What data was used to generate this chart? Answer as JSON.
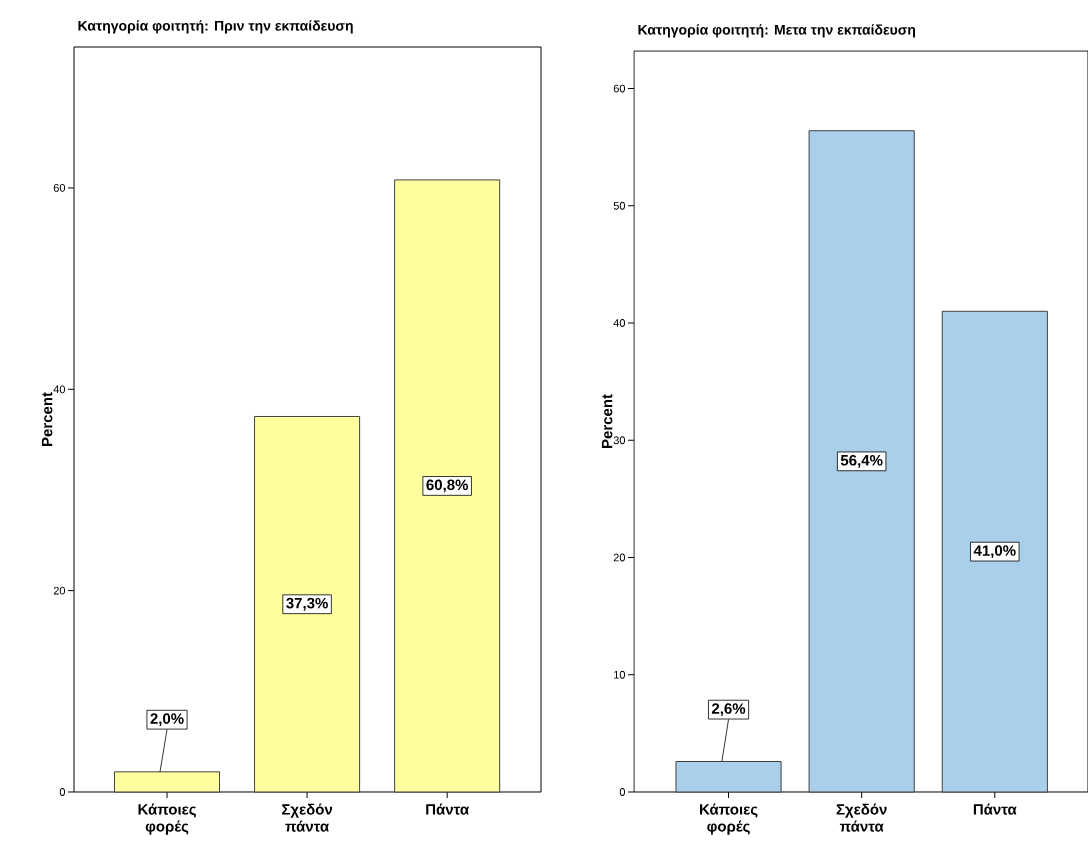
{
  "chart_data": [
    {
      "type": "bar",
      "title": "Κατηγορία φοιτητή: Πριν την εκπαίδευση",
      "ylabel": "Percent",
      "categories": [
        "Κάποιες φορές",
        "Σχεδόν πάντα",
        "Πάντα"
      ],
      "values": [
        2.0,
        37.3,
        60.8
      ],
      "value_labels": [
        "2,0%",
        "37,3%",
        "60,8%"
      ],
      "color": "#ffffa0",
      "ylim": [
        0,
        74
      ],
      "yticks": [
        0,
        20,
        40,
        60
      ]
    },
    {
      "type": "bar",
      "title": "Κατηγορία φοιτητή: Μετα την εκπαίδευση",
      "ylabel": "Percent",
      "categories": [
        "Κάποιες φορές",
        "Σχεδόν πάντα",
        "Πάντα"
      ],
      "values": [
        2.6,
        56.4,
        41.0
      ],
      "value_labels": [
        "2,6%",
        "56,4%",
        "41,0%"
      ],
      "color": "#aacfea",
      "ylim": [
        0,
        63.2
      ],
      "yticks": [
        0,
        10,
        20,
        30,
        40,
        50,
        60
      ]
    }
  ]
}
